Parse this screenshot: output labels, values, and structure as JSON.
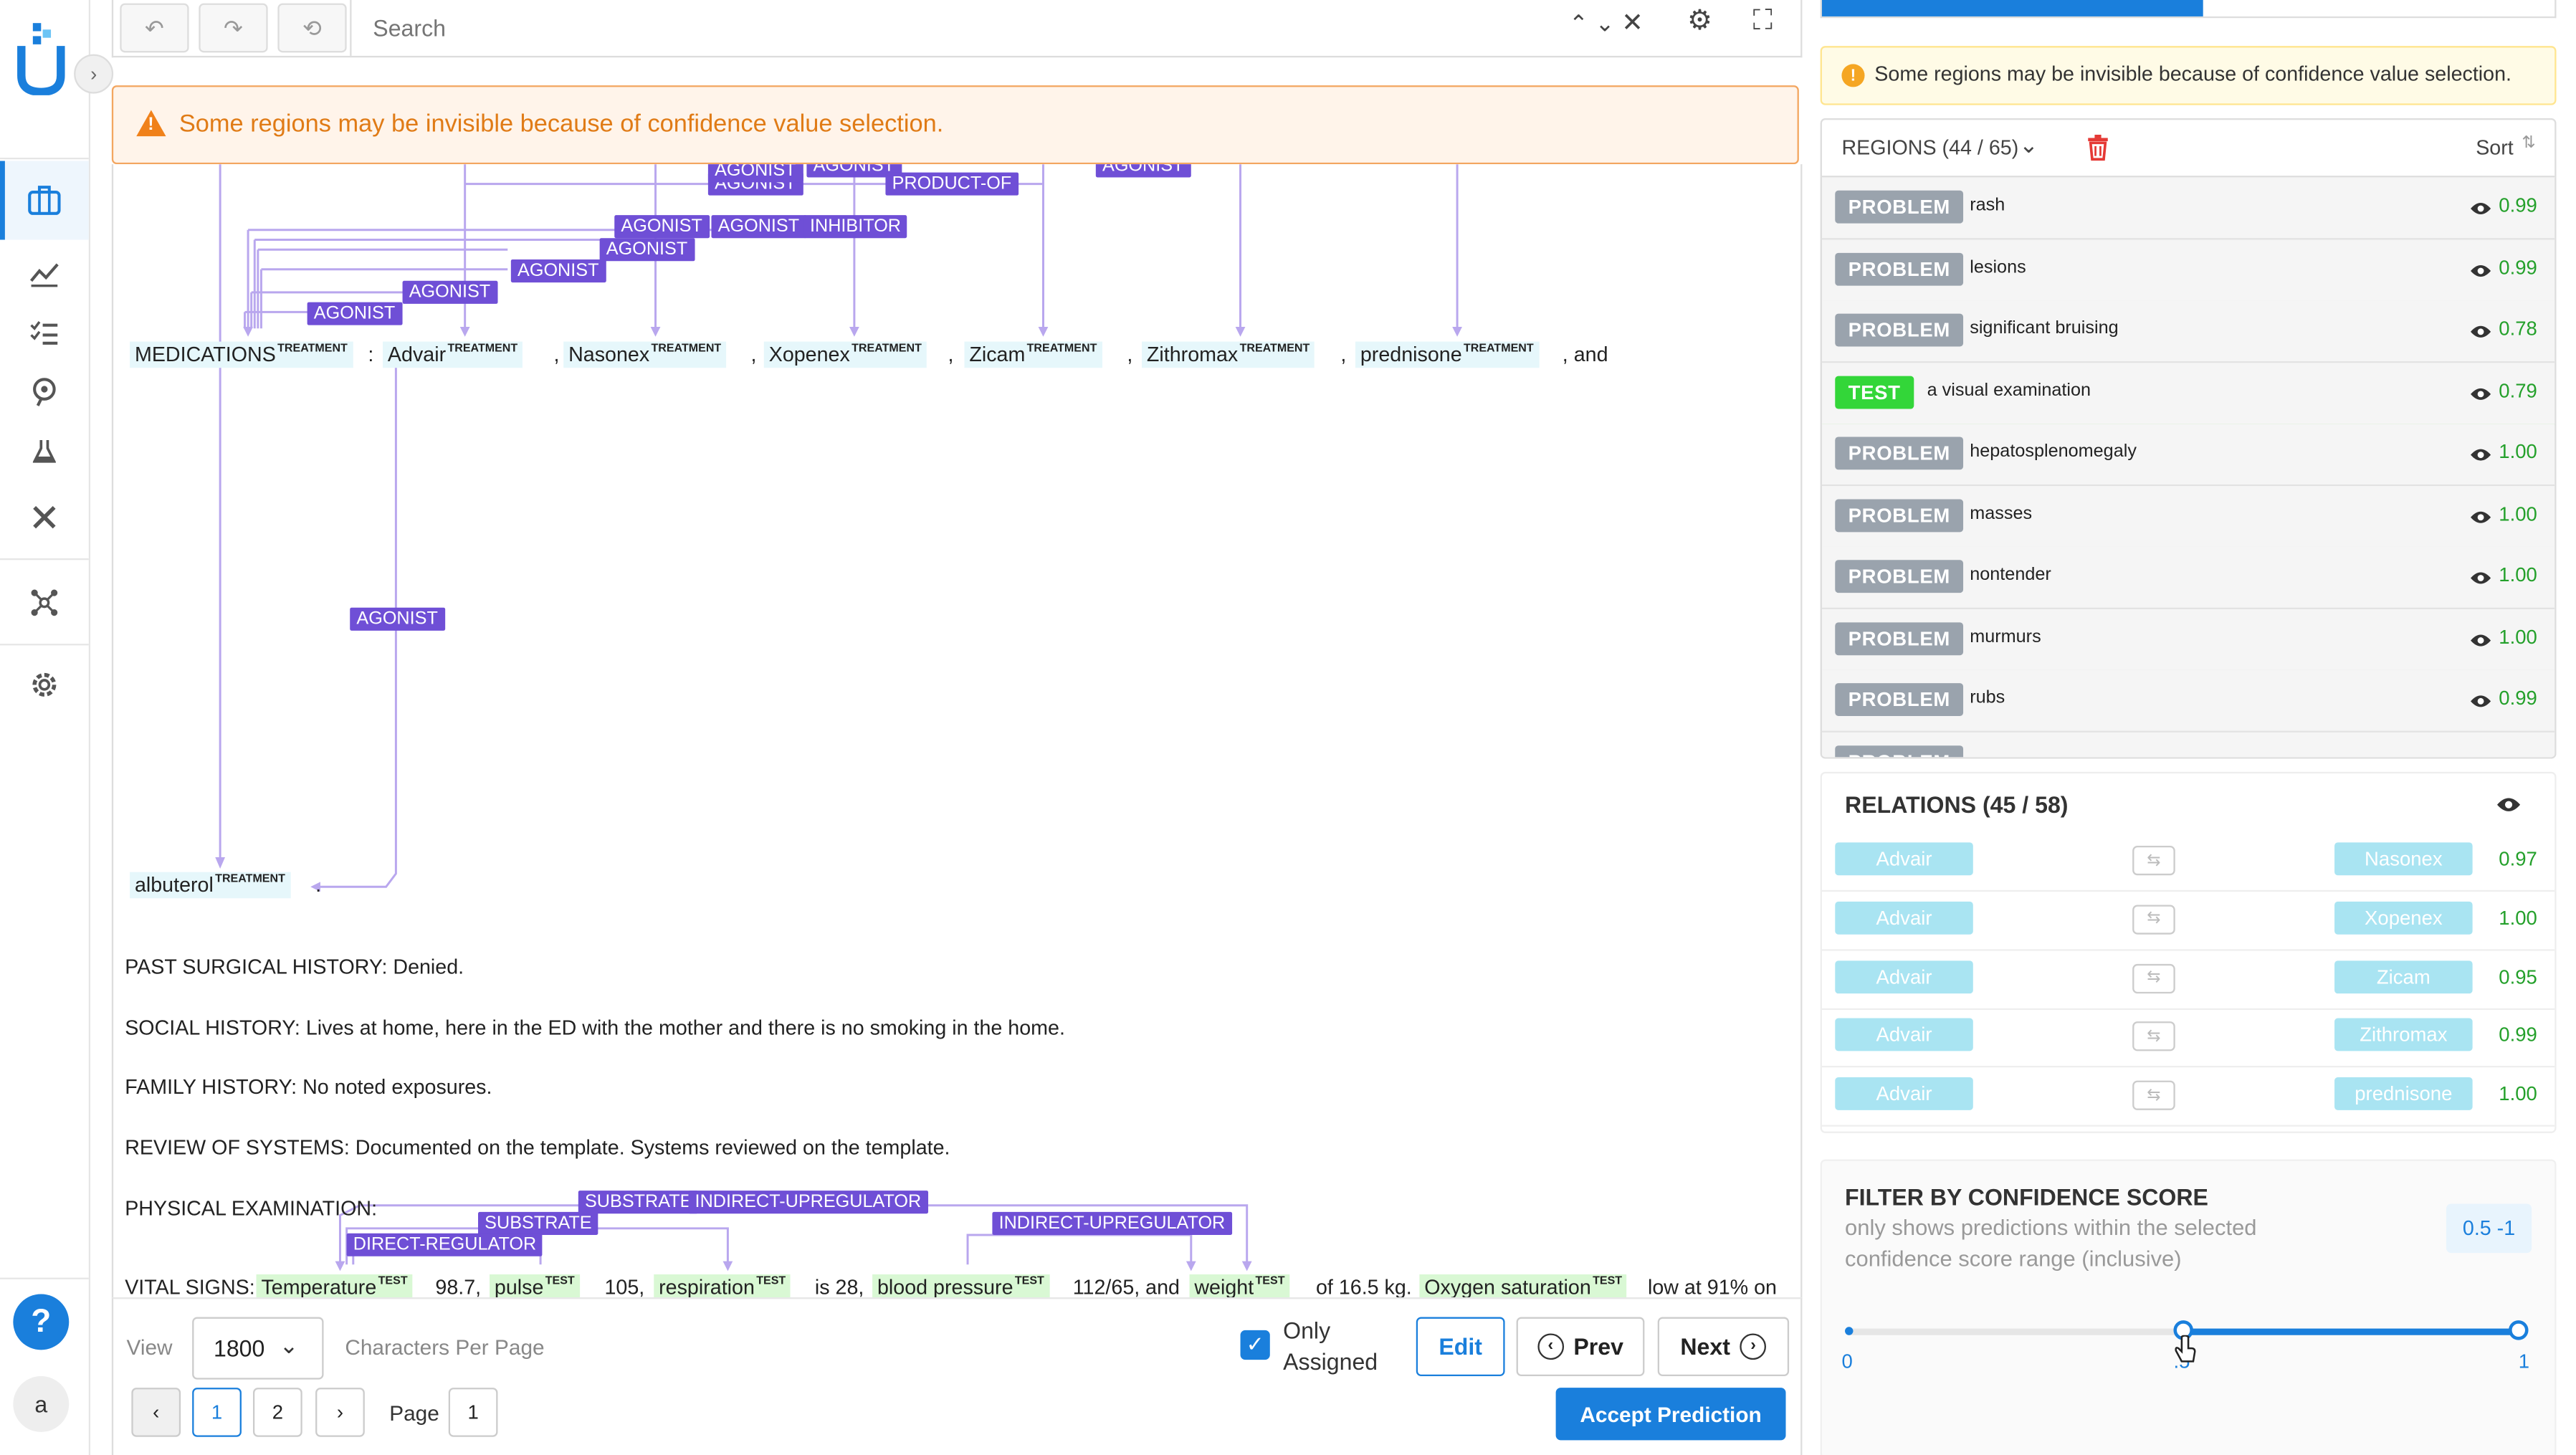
{
  "toolbar": {
    "search_placeholder": "Search"
  },
  "warning": {
    "text": "Some regions may be invisible because of confidence value selection."
  },
  "editor": {
    "medications_line": {
      "label": "MEDICATIONS",
      "sep": ":",
      "tail": ", and",
      "tokens": [
        {
          "text": "Advair",
          "tag": "TREATMENT"
        },
        {
          "text": "Nasonex",
          "tag": "TREATMENT"
        },
        {
          "text": "Xopenex",
          "tag": "TREATMENT"
        },
        {
          "text": "Zicam",
          "tag": "TREATMENT"
        },
        {
          "text": "Zithromax",
          "tag": "TREATMENT"
        },
        {
          "text": "prednisone",
          "tag": "TREATMENT"
        }
      ],
      "label_tag": "TREATMENT"
    },
    "albuterol": {
      "text": "albuterol",
      "tag": "TREATMENT",
      "tail": "."
    },
    "relation_labels": [
      "AGONIST",
      "AGONIST",
      "AGONIST",
      "PRODUCT-OF",
      "AGONIST",
      "AGONIST",
      "AGONIST",
      "INHIBITOR",
      "AGONIST",
      "AGONIST",
      "AGONIST",
      "AGONIST",
      "AGONIST"
    ],
    "paragraphs": [
      "PAST SURGICAL HISTORY: Denied.",
      "SOCIAL HISTORY: Lives at home, here in the ED with the mother and there is no smoking in the home.",
      "FAMILY HISTORY: No noted exposures.",
      "REVIEW OF SYSTEMS: Documented on the template. Systems reviewed on the template.",
      "PHYSICAL EXAMINATION:"
    ],
    "vital_signs": {
      "label": "VITAL SIGNS:",
      "tokens": [
        {
          "text": "Temperature",
          "tag": "TEST",
          "after": "98.7,"
        },
        {
          "text": "pulse",
          "tag": "TEST",
          "after": "105,"
        },
        {
          "text": "respiration",
          "tag": "TEST",
          "after": "is 28,"
        },
        {
          "text": "blood pressure",
          "tag": "TEST",
          "after": "112/65, and"
        },
        {
          "text": "weight",
          "tag": "TEST",
          "after": "of 16.5 kg."
        },
        {
          "text": "Oxygen saturation",
          "tag": "TEST",
          "after": "low at 91% on"
        }
      ],
      "relation_labels": [
        "SUBSTRATE",
        "INDIRECT-UPREGULATOR",
        "SUBSTRATE",
        "INDIRECT-UPREGULATOR",
        "DIRECT-REGULATOR"
      ]
    }
  },
  "bottom": {
    "view_label": "View",
    "chars_value": "1800",
    "chars_label": "Characters Per Page",
    "only_assigned": "Only Assigned",
    "only_assigned_line1": "Only",
    "only_assigned_line2": "Assigned",
    "edit": "Edit",
    "prev": "Prev",
    "next": "Next",
    "accept": "Accept Prediction",
    "pages": [
      "1",
      "2"
    ],
    "page_label": "Page",
    "page_value": "1"
  },
  "right": {
    "info": "Some regions may be invisible because of confidence value selection.",
    "regions_title": "REGIONS (44 / 65)",
    "sort": "Sort",
    "regions": [
      {
        "label": "PROBLEM",
        "text": "rash",
        "score": "0.99"
      },
      {
        "label": "PROBLEM",
        "text": "lesions",
        "score": "0.99"
      },
      {
        "label": "PROBLEM",
        "text": "significant bruising",
        "score": "0.78"
      },
      {
        "label": "TEST",
        "text": "a visual examination",
        "score": "0.79"
      },
      {
        "label": "PROBLEM",
        "text": "hepatosplenomegaly",
        "score": "1.00"
      },
      {
        "label": "PROBLEM",
        "text": "masses",
        "score": "1.00"
      },
      {
        "label": "PROBLEM",
        "text": "nontender",
        "score": "1.00"
      },
      {
        "label": "PROBLEM",
        "text": "murmurs",
        "score": "1.00"
      },
      {
        "label": "PROBLEM",
        "text": "rubs",
        "score": "0.99"
      },
      {
        "label": "PROBLEM",
        "text": "",
        "score": ""
      }
    ],
    "relations_title": "RELATIONS (45 / 58)",
    "relations": [
      {
        "from": "Advair",
        "to": "Nasonex",
        "score": "0.97"
      },
      {
        "from": "Advair",
        "to": "Xopenex",
        "score": "1.00"
      },
      {
        "from": "Advair",
        "to": "Zicam",
        "score": "0.95"
      },
      {
        "from": "Advair",
        "to": "Zithromax",
        "score": "0.99"
      },
      {
        "from": "Advair",
        "to": "prednisone",
        "score": "1.00"
      }
    ],
    "filter": {
      "title": "FILTER BY CONFIDENCE SCORE",
      "desc_line1": "only shows predictions within the selected",
      "desc_line2": "confidence score range (inclusive)",
      "range_badge": "0.5 -1",
      "min_label": "0",
      "mid_label": ".5",
      "max_label": "1",
      "range_low": 0.5,
      "range_high": 1.0
    }
  },
  "colors": {
    "accent": "#1a7fdc",
    "relation_label": "#6f4fd6",
    "treatment_bg": "#e6f7fb",
    "test_bg": "#d9f8d4",
    "warning": "#e07b16",
    "score_green": "#24a02b"
  }
}
